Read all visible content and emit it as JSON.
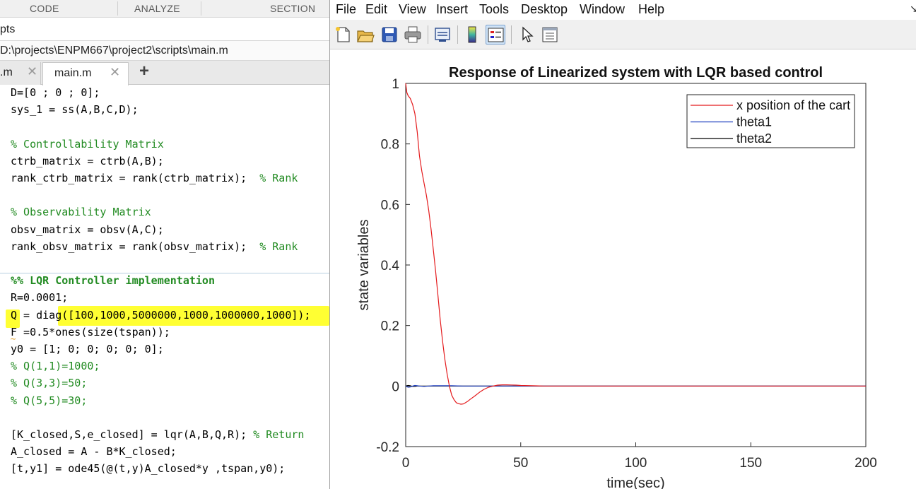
{
  "editor": {
    "toolstrip_tabs": [
      "CODE",
      "ANALYZE",
      "SECTION"
    ],
    "current_folder": "pts",
    "file_path": "D:\\projects\\ENPM667\\project2\\scripts\\main.m",
    "tabs": [
      {
        "label": ".m",
        "active": false
      },
      {
        "label": "main.m",
        "active": true
      }
    ],
    "add_tab": "+",
    "close_glyph": "✕",
    "code_lines": [
      {
        "text": "D=[0 ; 0 ; 0];",
        "style": "code"
      },
      {
        "text": "sys_1 = ss(A,B,C,D);",
        "style": "code"
      },
      {
        "text": "",
        "style": "code"
      },
      {
        "text": "% Controllability Matrix",
        "style": "comment"
      },
      {
        "text": "ctrb_matrix = ctrb(A,B);",
        "style": "code"
      },
      {
        "text": "rank_ctrb_matrix = rank(ctrb_matrix);  ",
        "comment": "% Rank",
        "style": "code"
      },
      {
        "text": "",
        "style": "code"
      },
      {
        "text": "% Observability Matrix",
        "style": "comment"
      },
      {
        "text": "obsv_matrix = obsv(A,C);",
        "style": "code"
      },
      {
        "text": "rank_obsv_matrix = rank(obsv_matrix);  ",
        "comment": "% Rank",
        "style": "code"
      },
      {
        "text": "",
        "style": "code"
      },
      {
        "text": "%% LQR Controller implementation",
        "style": "section"
      },
      {
        "text": "R=0.0001;",
        "style": "code"
      },
      {
        "text": "Q = diag([100,1000,5000000,1000,1000000,1000]);",
        "style": "code"
      },
      {
        "text": "F =0.5*ones(size(tspan));",
        "style": "code"
      },
      {
        "text": "y0 = [1; 0; 0; 0; 0; 0];",
        "style": "code"
      },
      {
        "text": "% Q(1,1)=1000;",
        "style": "comment"
      },
      {
        "text": "% Q(3,3)=50;",
        "style": "comment"
      },
      {
        "text": "% Q(5,5)=30;",
        "style": "comment"
      },
      {
        "text": "",
        "style": "code"
      },
      {
        "text": "[K_closed,S,e_closed] = lqr(A,B,Q,R); ",
        "comment": "% Return",
        "style": "code"
      },
      {
        "text": "A_closed = A - B*K_closed;",
        "style": "code"
      },
      {
        "text": "[t,y1] = ode45(@(t,y)A_closed*y ,tspan,y0);",
        "style": "code"
      }
    ]
  },
  "figure": {
    "menu": [
      "File",
      "Edit",
      "View",
      "Insert",
      "Tools",
      "Desktop",
      "Window",
      "Help"
    ],
    "menu_overflow": "↘",
    "toolbar": [
      {
        "name": "new-figure-icon"
      },
      {
        "name": "open-file-icon"
      },
      {
        "name": "save-icon"
      },
      {
        "name": "print-icon"
      },
      {
        "name": "link-plot-icon"
      },
      {
        "name": "insert-colorbar-icon"
      },
      {
        "name": "insert-legend-icon",
        "pressed": true
      },
      {
        "name": "edit-plot-arrow-icon"
      },
      {
        "name": "property-inspector-icon"
      }
    ]
  },
  "chart_data": {
    "type": "line",
    "title": "Response of Linearized system with LQR based control",
    "xlabel": "time(sec)",
    "ylabel": "state variables",
    "xlim": [
      0,
      200
    ],
    "ylim": [
      -0.2,
      1
    ],
    "xticks": [
      "0",
      "50",
      "100",
      "150",
      "200"
    ],
    "yticks": [
      "-0.2",
      "0",
      "0.2",
      "0.4",
      "0.6",
      "0.8",
      "1"
    ],
    "legend_position": "top-right",
    "grid": false,
    "series": [
      {
        "name": "x position of the cart",
        "color": "#e41a1c",
        "x": [
          0,
          0.5,
          1,
          2,
          3,
          4,
          5,
          6,
          7,
          8,
          9,
          10,
          11,
          12,
          13,
          14,
          15,
          16,
          17,
          18,
          19,
          20,
          21,
          22,
          23,
          24,
          25,
          26,
          27,
          28,
          30,
          32,
          34,
          36,
          38,
          40,
          42,
          44,
          46,
          48,
          50,
          55,
          60,
          70,
          80,
          100,
          200
        ],
        "y": [
          1.0,
          0.97,
          0.96,
          0.95,
          0.93,
          0.9,
          0.84,
          0.76,
          0.71,
          0.67,
          0.63,
          0.58,
          0.52,
          0.45,
          0.38,
          0.3,
          0.22,
          0.15,
          0.09,
          0.04,
          0.0,
          -0.03,
          -0.045,
          -0.055,
          -0.058,
          -0.06,
          -0.059,
          -0.055,
          -0.05,
          -0.044,
          -0.033,
          -0.021,
          -0.011,
          -0.004,
          0.0,
          0.003,
          0.004,
          0.004,
          0.0035,
          0.003,
          0.002,
          0.001,
          0.0,
          0.0,
          0.0,
          0.0,
          0.0
        ]
      },
      {
        "name": "theta1",
        "color": "#1f3fbf",
        "x": [
          0,
          1,
          2,
          3,
          4,
          5,
          6,
          8,
          10,
          12,
          15,
          20,
          25,
          30,
          40,
          60,
          100,
          200
        ],
        "y": [
          0.0,
          -0.004,
          -0.003,
          0.0,
          0.002,
          0.001,
          0.0,
          -0.001,
          0.0,
          0.001,
          0.001,
          0.001,
          0.0,
          0.0,
          0.0,
          0.0,
          0.0,
          0.0
        ]
      },
      {
        "name": "theta2",
        "color": "#000000",
        "x": [
          0,
          1,
          2,
          3,
          4,
          5,
          6,
          8,
          10,
          12,
          15,
          20,
          25,
          30,
          40,
          60,
          100,
          200
        ],
        "y": [
          0.0,
          0.002,
          0.001,
          -0.001,
          -0.001,
          0.0,
          0.0,
          0.0,
          0.0,
          0.0,
          0.0,
          0.0,
          0.0,
          0.0,
          0.0,
          0.0,
          0.0,
          0.0
        ]
      }
    ]
  }
}
